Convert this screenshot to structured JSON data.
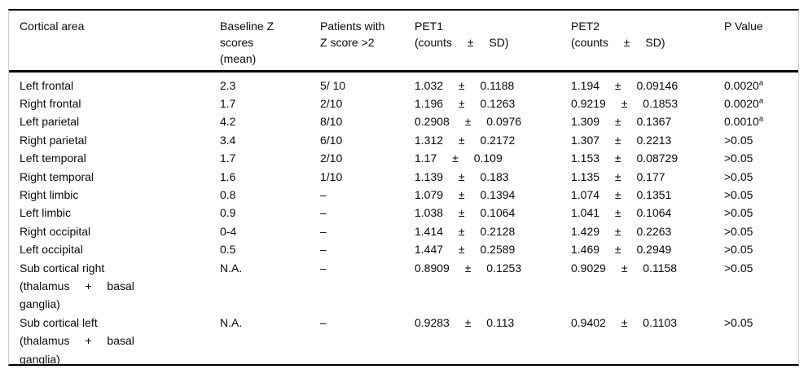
{
  "table": {
    "header": {
      "cortical_area": "Cortical area",
      "baseline_lines": [
        "Baseline Z",
        "scores",
        "(mean)"
      ],
      "patients_lines": [
        "Patients with",
        "Z score >2"
      ],
      "pet1_name": "PET1",
      "pet2_name": "PET2",
      "counts_line": "(counts ± SD)",
      "p_value": "P Value"
    },
    "rows": [
      {
        "area": [
          "Left frontal"
        ],
        "baseline": "2.3",
        "patients": "5/ 10",
        "pet1": "1.032 ± 0.1188",
        "pet2": "1.194 ± 0.09146",
        "p": "0.0020",
        "p_sup": "a"
      },
      {
        "area": [
          "Right frontal"
        ],
        "baseline": "1.7",
        "patients": "2/10",
        "pet1": "1.196 ± 0.1263",
        "pet2": "0.9219 ± 0.1853",
        "p": "0.0020",
        "p_sup": "a"
      },
      {
        "area": [
          "Left parietal"
        ],
        "baseline": "4.2",
        "patients": "8/10",
        "pet1": "0.2908 ± 0.0976",
        "pet2": "1.309 ± 0.1367",
        "p": "0.0010",
        "p_sup": "a"
      },
      {
        "area": [
          "Right parietal"
        ],
        "baseline": "3.4",
        "patients": "6/10",
        "pet1": "1.312 ± 0.2172",
        "pet2": "1.307 ± 0.2213",
        "p": ">0.05",
        "p_sup": ""
      },
      {
        "area": [
          "Left temporal"
        ],
        "baseline": "1.7",
        "patients": "2/10",
        "pet1": "1.17 ± 0.109",
        "pet2": "1.153 ± 0.08729",
        "p": ">0.05",
        "p_sup": ""
      },
      {
        "area": [
          "Right temporal"
        ],
        "baseline": "1.6",
        "patients": "1/10",
        "pet1": "1.139 ± 0.183",
        "pet2": "1.135 ± 0.177",
        "p": ">0.05",
        "p_sup": ""
      },
      {
        "area": [
          "Right limbic"
        ],
        "baseline": "0.8",
        "patients": "–",
        "pet1": "1.079 ± 0.1394",
        "pet2": "1.074 ± 0.1351",
        "p": ">0.05",
        "p_sup": ""
      },
      {
        "area": [
          "Left limbic"
        ],
        "baseline": "0.9",
        "patients": "–",
        "pet1": "1.038 ± 0.1064",
        "pet2": "1.041 ± 0.1064",
        "p": ">0.05",
        "p_sup": ""
      },
      {
        "area": [
          "Right occipital"
        ],
        "baseline": "0-4",
        "patients": "–",
        "pet1": "1.414 ± 0.2128",
        "pet2": "1.429 ± 0.2263",
        "p": ">0.05",
        "p_sup": ""
      },
      {
        "area": [
          "Left occipital"
        ],
        "baseline": "0.5",
        "patients": "–",
        "pet1": "1.447 ± 0.2589",
        "pet2": "1.469 ± 0.2949",
        "p": ">0.05",
        "p_sup": ""
      },
      {
        "area": [
          "Sub cortical right",
          "(thalamus + basal",
          "ganglia)"
        ],
        "baseline": "N.A.",
        "patients": "–",
        "pet1": "0.8909 ± 0.1253",
        "pet2": "0.9029 ± 0.1158",
        "p": ">0.05",
        "p_sup": ""
      },
      {
        "area": [
          "Sub cortical left",
          "(thalamus + basal",
          "ganglia)"
        ],
        "baseline": "N.A.",
        "patients": "–",
        "pet1": "0.9283 ± 0.113",
        "pet2": "0.9402 ± 0.1103",
        "p": ">0.05",
        "p_sup": ""
      }
    ],
    "colors": {
      "border": "#000000",
      "side_border": "#cfcfcf",
      "text": "#0a0a0a",
      "background": "#ffffff"
    }
  }
}
